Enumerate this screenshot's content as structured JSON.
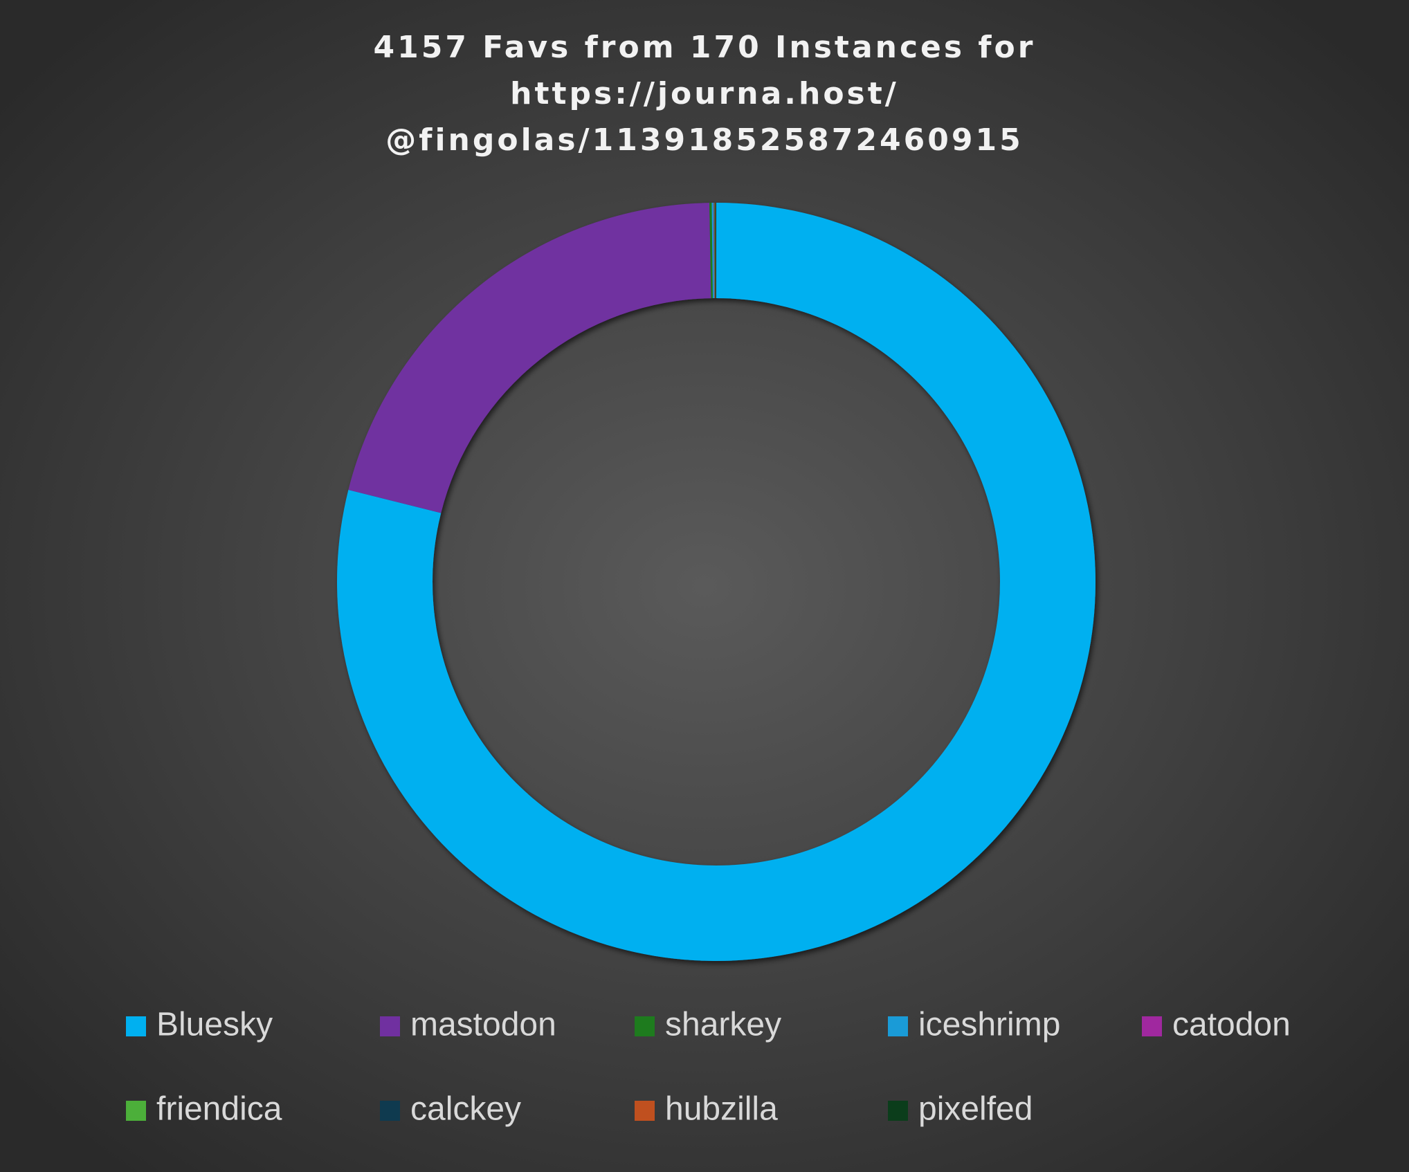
{
  "chart_data": {
    "type": "donut",
    "title": [
      "4157 Favs from 170 Instances for",
      "https://journa.host/",
      "@fingolas/113918525872460915"
    ],
    "categories": [
      "Bluesky",
      "mastodon",
      "sharkey",
      "iceshrimp",
      "catodon",
      "friendica",
      "calckey",
      "hubzilla",
      "pixelfed"
    ],
    "values": [
      3280,
      865,
      4,
      3,
      1,
      1,
      1,
      1,
      1
    ],
    "colors": [
      "#00b0f0",
      "#7030a0",
      "#1e7b1e",
      "#1a9bd7",
      "#a0289f",
      "#4caf3a",
      "#0f3a4f",
      "#c0501f",
      "#0b3d1b"
    ],
    "legend": "bottom"
  }
}
